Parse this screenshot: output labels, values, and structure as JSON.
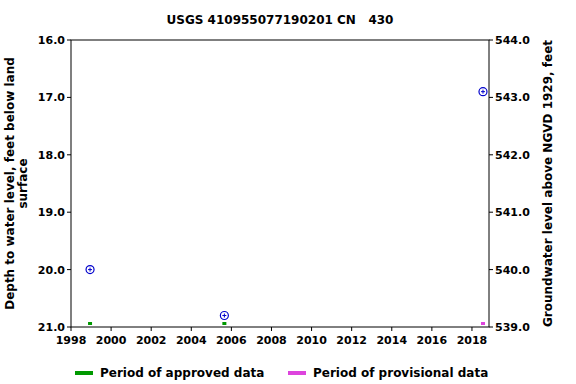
{
  "chart_data": {
    "type": "scatter",
    "title": "USGS 410955077190201 CN   430",
    "ylabel": [
      "Depth to water level, feet below land",
      "surface"
    ],
    "y2label": "Groundwater level above NGVD 1929, feet",
    "xlim": [
      1998,
      2018.85
    ],
    "xticks": [
      1998,
      2000,
      2002,
      2004,
      2006,
      2008,
      2010,
      2012,
      2014,
      2016,
      2018
    ],
    "ylim": [
      21,
      16
    ],
    "yticks": [
      {
        "value": 16,
        "label": "16.0"
      },
      {
        "value": 17,
        "label": "17.0"
      },
      {
        "value": 18,
        "label": "18.0"
      },
      {
        "value": 19,
        "label": "19.0"
      },
      {
        "value": 20,
        "label": "20.0"
      },
      {
        "value": 21,
        "label": "21.0"
      }
    ],
    "y2lim": [
      539,
      544
    ],
    "y2ticks": [
      {
        "value": 539,
        "label": "539.0"
      },
      {
        "value": 540,
        "label": "540.0"
      },
      {
        "value": 541,
        "label": "541.0"
      },
      {
        "value": 542,
        "label": "542.0"
      },
      {
        "value": 543,
        "label": "543.0"
      },
      {
        "value": 544,
        "label": "544.0"
      }
    ],
    "grid": false,
    "series": [
      {
        "color": "#0000cc",
        "marker": "circle",
        "x": [
          1998.95,
          2005.65,
          2018.55
        ],
        "values": [
          20.0,
          20.8,
          16.9
        ]
      }
    ],
    "periods": [
      {
        "name": "Period of approved data",
        "color": "#009900",
        "x": [
          1998.95,
          2005.65
        ]
      },
      {
        "name": "Period of provisional data",
        "color": "#dd44dd",
        "x": [
          2018.55
        ]
      }
    ],
    "legend": "bottom"
  }
}
